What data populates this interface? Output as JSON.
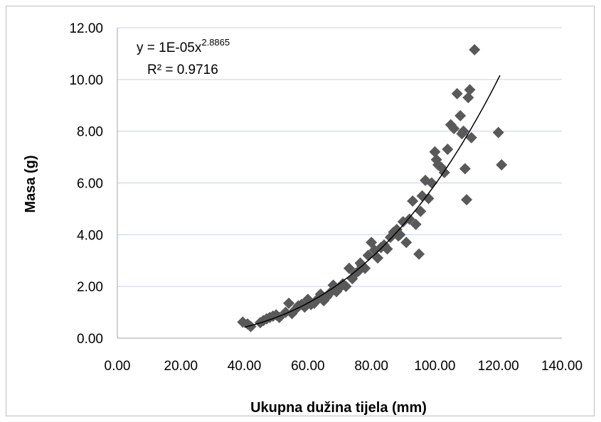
{
  "chart_data": {
    "type": "scatter",
    "title": "",
    "xlabel": "Ukupna dužina tijela (mm)",
    "ylabel": "Masa (g)",
    "xlim": [
      0,
      140
    ],
    "ylim": [
      0,
      12
    ],
    "x_ticks": [
      "0.00",
      "20.00",
      "40.00",
      "60.00",
      "80.00",
      "100.00",
      "120.00",
      "140.00"
    ],
    "y_ticks": [
      "0.00",
      "2.00",
      "4.00",
      "6.00",
      "8.00",
      "10.00",
      "12.00"
    ],
    "grid": "horizontal",
    "legend": "none",
    "marker_color": "#595959",
    "trendline": {
      "type": "power",
      "a": 1e-05,
      "b": 2.8865,
      "equation_prefix": "y = 1E-05x",
      "equation_exponent": "2.8865",
      "r_squared_label": "R² = 0.9716"
    },
    "series": [
      {
        "points": [
          [
            39.5,
            0.62
          ],
          [
            41,
            0.55
          ],
          [
            42,
            0.45
          ],
          [
            45,
            0.6
          ],
          [
            46,
            0.68
          ],
          [
            47,
            0.75
          ],
          [
            48,
            0.8
          ],
          [
            49,
            0.85
          ],
          [
            50,
            0.9
          ],
          [
            51,
            0.8
          ],
          [
            53,
            1.0
          ],
          [
            54,
            1.35
          ],
          [
            55,
            0.95
          ],
          [
            56,
            1.1
          ],
          [
            57,
            1.25
          ],
          [
            58,
            1.3
          ],
          [
            59,
            1.2
          ],
          [
            60,
            1.5
          ],
          [
            61,
            1.3
          ],
          [
            62,
            1.35
          ],
          [
            63,
            1.5
          ],
          [
            64,
            1.7
          ],
          [
            65,
            1.45
          ],
          [
            66,
            1.6
          ],
          [
            67,
            1.75
          ],
          [
            68,
            2.05
          ],
          [
            69,
            1.8
          ],
          [
            70,
            1.95
          ],
          [
            71,
            2.1
          ],
          [
            72,
            2.0
          ],
          [
            73,
            2.7
          ],
          [
            74,
            2.3
          ],
          [
            75,
            2.5
          ],
          [
            76,
            2.6
          ],
          [
            77,
            2.8
          ],
          [
            78,
            2.7
          ],
          [
            79,
            3.2
          ],
          [
            80,
            3.7
          ],
          [
            81,
            3.4
          ],
          [
            82,
            3.1
          ],
          [
            83,
            3.5
          ],
          [
            84,
            3.6
          ],
          [
            85,
            3.45
          ],
          [
            86,
            3.9
          ],
          [
            87,
            4.1
          ],
          [
            88,
            4.2
          ],
          [
            89,
            4.0
          ],
          [
            90,
            4.5
          ],
          [
            91,
            3.7
          ],
          [
            92,
            4.6
          ],
          [
            93,
            5.3
          ],
          [
            94,
            4.4
          ],
          [
            95,
            3.25
          ],
          [
            95.5,
            4.9
          ],
          [
            96,
            5.5
          ],
          [
            97,
            6.1
          ],
          [
            98,
            5.4
          ],
          [
            99,
            6.0
          ],
          [
            100,
            7.2
          ],
          [
            101,
            6.7
          ],
          [
            102,
            6.6
          ],
          [
            103,
            6.4
          ],
          [
            104,
            7.3
          ],
          [
            105,
            8.25
          ],
          [
            106,
            8.1
          ],
          [
            107,
            9.45
          ],
          [
            108,
            8.6
          ],
          [
            108.5,
            7.9
          ],
          [
            109,
            8.0
          ],
          [
            109.5,
            6.55
          ],
          [
            110,
            5.35
          ],
          [
            110.5,
            9.3
          ],
          [
            111,
            9.6
          ],
          [
            111.5,
            7.75
          ],
          [
            112.5,
            11.15
          ],
          [
            120,
            7.95
          ],
          [
            121,
            6.7
          ],
          [
            100.5,
            6.9
          ],
          [
            88.5,
            3.95
          ],
          [
            76.5,
            2.9
          ]
        ]
      }
    ]
  }
}
